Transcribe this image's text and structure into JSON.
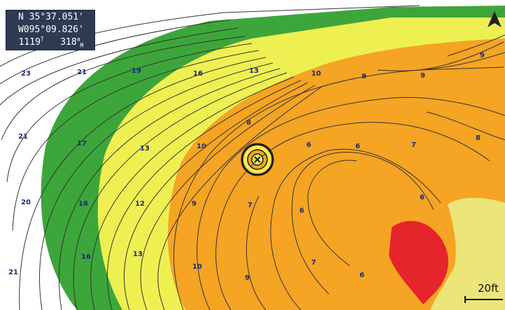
{
  "position": {
    "latitude": "N  35°37.051'",
    "longitude": "W095°09.826'",
    "heading_value": "1119",
    "heading_unit": "T",
    "distance_value": "318",
    "distance_unit_top": "a",
    "distance_unit_bottom": "M"
  },
  "scale": {
    "label": "20ft"
  },
  "compass": {
    "icon": "north-arrow-icon"
  },
  "waypoint": {
    "icon": "waypoint-x-icon"
  },
  "colors": {
    "deep_white": "#ffffff",
    "green": "#3da63a",
    "yellow": "#eef052",
    "orange": "#f5a423",
    "red": "#e5242b",
    "shoal_yellow": "#ece57a",
    "contour": "#333333"
  },
  "depth_labels": [
    "23",
    "21",
    "19",
    "16",
    "13",
    "10",
    "9",
    "9",
    "9",
    "21",
    "17",
    "13",
    "10",
    "8",
    "6",
    "6",
    "7",
    "8",
    "20",
    "16",
    "12",
    "9",
    "7",
    "6",
    "6",
    "16",
    "13",
    "10",
    "9",
    "7",
    "6",
    "21"
  ]
}
